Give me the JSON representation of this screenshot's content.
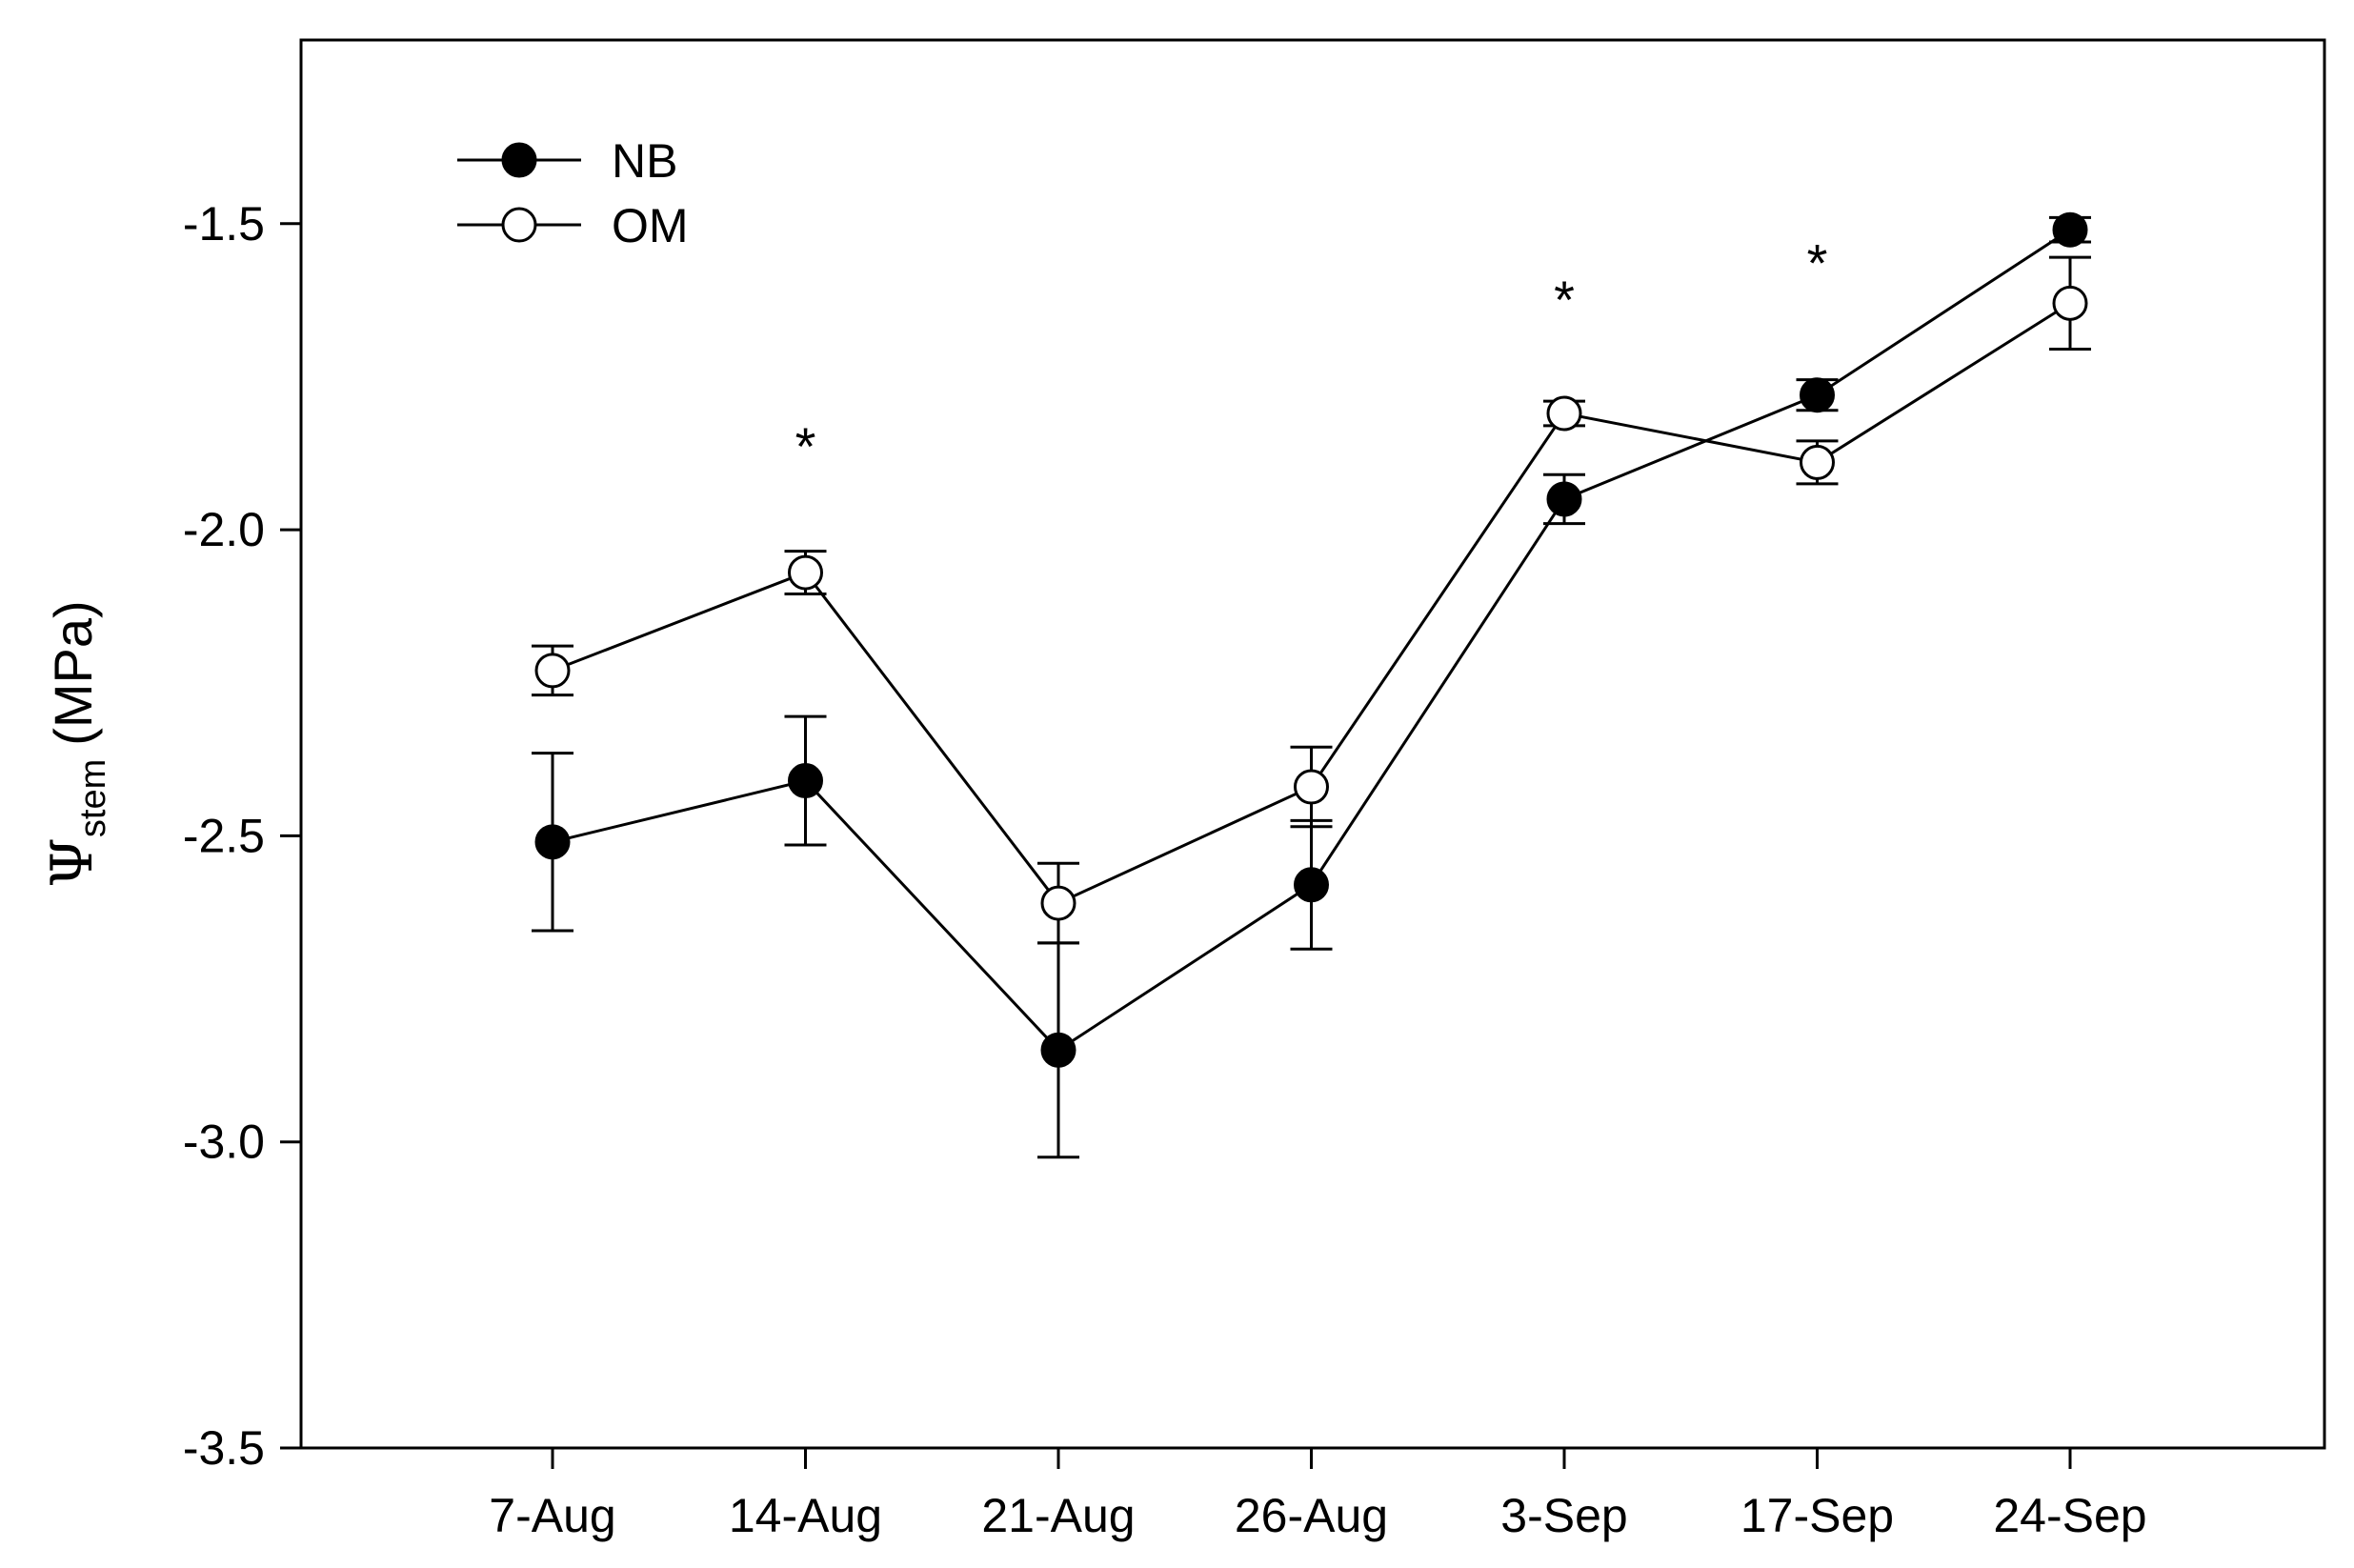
{
  "chart_data": {
    "type": "line",
    "title": "",
    "xlabel": "",
    "ylabel": {
      "symbol": "Ψ",
      "subscript": "stem",
      "unit": "(MPa)"
    },
    "categories": [
      "7-Aug",
      "14-Aug",
      "21-Aug",
      "26-Aug",
      "3-Sep",
      "17-Sep",
      "24-Sep"
    ],
    "ylim": [
      -3.5,
      -1.2
    ],
    "yticks": [
      -3.5,
      -3.0,
      -2.5,
      -2.0,
      -1.5
    ],
    "ytick_labels": [
      "-3.5",
      "-3.0",
      "-2.5",
      "-2.0",
      "-1.5"
    ],
    "series": [
      {
        "name": "NB",
        "marker": "filled-circle",
        "values": [
          -2.51,
          -2.41,
          -2.85,
          -2.58,
          -1.95,
          -1.78,
          -1.51
        ],
        "errors": [
          0.145,
          0.105,
          0.175,
          0.105,
          0.04,
          0.025,
          0.02
        ]
      },
      {
        "name": "OM",
        "marker": "open-circle",
        "values": [
          -2.23,
          -2.07,
          -2.61,
          -2.42,
          -1.81,
          -1.89,
          -1.63
        ],
        "errors": [
          0.04,
          0.035,
          0.065,
          0.065,
          0.02,
          0.035,
          0.075
        ]
      }
    ],
    "significance": [
      {
        "category": "14-Aug",
        "label": "*",
        "y": -1.86
      },
      {
        "category": "3-Sep",
        "label": "*",
        "y": -1.62
      },
      {
        "category": "17-Sep",
        "label": "*",
        "y": -1.56
      }
    ],
    "legend_position": "top-left",
    "grid": false
  }
}
